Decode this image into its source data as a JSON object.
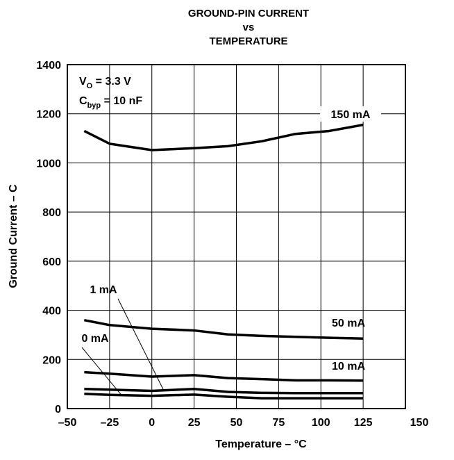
{
  "chart_data": {
    "type": "line",
    "title": [
      "GROUND-PIN CURRENT",
      "vs",
      "TEMPERATURE"
    ],
    "xlabel": "Temperature – °C",
    "ylabel": "Ground Current – C",
    "xlim": [
      -50,
      150
    ],
    "ylim": [
      0,
      1400
    ],
    "xticks": [
      -50,
      -25,
      0,
      25,
      50,
      75,
      100,
      125,
      150
    ],
    "xtick_labels": [
      "–50",
      "–25",
      "0",
      "25",
      "50",
      "75",
      "100",
      "125",
      "150"
    ],
    "yticks": [
      0,
      200,
      400,
      600,
      800,
      1000,
      1200,
      1400
    ],
    "ytick_labels": [
      "0",
      "200",
      "400",
      "600",
      "800",
      "1000",
      "1200",
      "1400"
    ],
    "grid": true,
    "conditions": [
      {
        "main": "V",
        "sub": "O",
        "rest": " = 3.3 V"
      },
      {
        "main": "C",
        "sub": "byp",
        "rest": " = 10 nF"
      }
    ],
    "series": [
      {
        "name": "150 mA",
        "x": [
          -40,
          -25,
          0,
          25,
          45,
          65,
          85,
          105,
          125
        ],
        "y": [
          1130,
          1078,
          1052,
          1060,
          1068,
          1088,
          1118,
          1130,
          1155
        ]
      },
      {
        "name": "50 mA",
        "x": [
          -40,
          -25,
          0,
          25,
          45,
          65,
          85,
          105,
          125
        ],
        "y": [
          360,
          340,
          325,
          318,
          302,
          296,
          292,
          288,
          285
        ]
      },
      {
        "name": "10 mA",
        "x": [
          -40,
          -25,
          0,
          25,
          45,
          65,
          85,
          105,
          125
        ],
        "y": [
          148,
          142,
          130,
          136,
          124,
          120,
          115,
          115,
          114
        ]
      },
      {
        "name": "1 mA",
        "x": [
          -40,
          -25,
          0,
          25,
          45,
          65,
          85,
          105,
          125
        ],
        "y": [
          80,
          77,
          72,
          80,
          68,
          64,
          63,
          63,
          63
        ]
      },
      {
        "name": "0 mA",
        "x": [
          -40,
          -25,
          0,
          25,
          45,
          65,
          85,
          105,
          125
        ],
        "y": [
          60,
          56,
          52,
          57,
          48,
          42,
          42,
          42,
          42
        ]
      }
    ],
    "annotations": [
      {
        "text": "150 mA",
        "series": "150 mA",
        "leader": false
      },
      {
        "text": "50 mA",
        "series": "50 mA",
        "leader": false
      },
      {
        "text": "10 mA",
        "series": "10 mA",
        "leader": false
      },
      {
        "text": "1 mA",
        "series": "1 mA",
        "leader": true
      },
      {
        "text": "0 mA",
        "series": "0 mA",
        "leader": true
      }
    ]
  }
}
